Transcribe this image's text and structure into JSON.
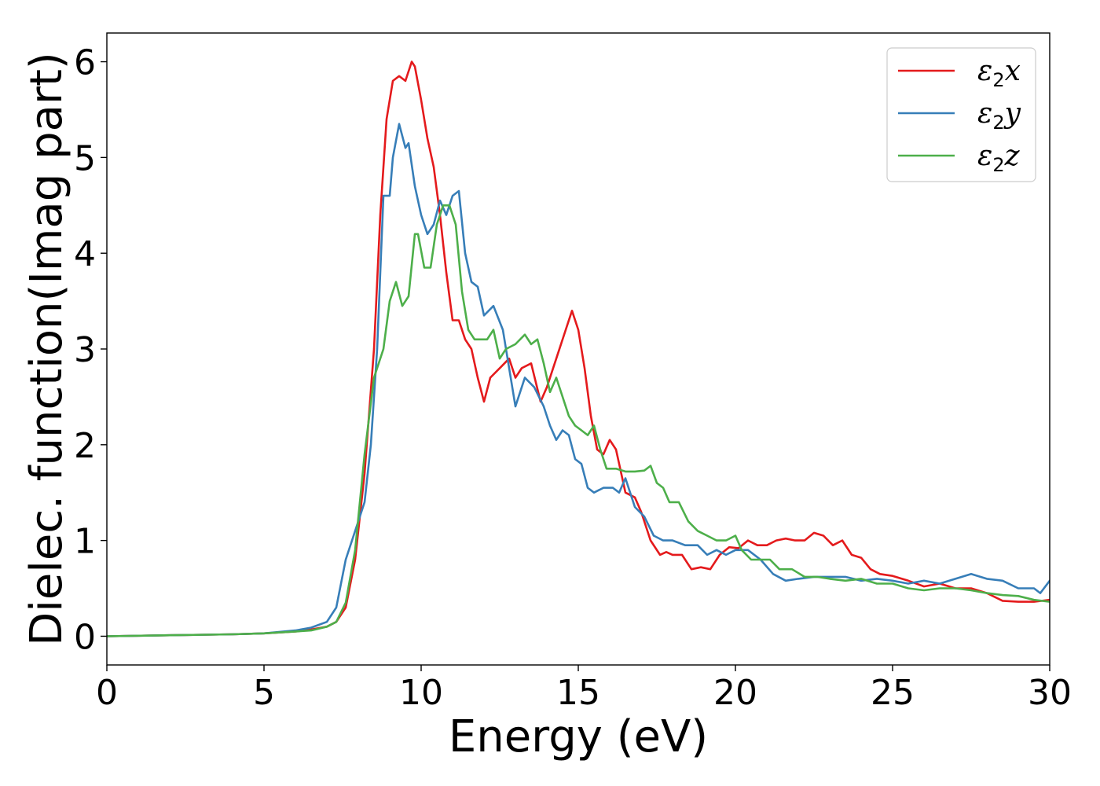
{
  "chart_data": {
    "type": "line",
    "title": "",
    "xlabel": "Energy (eV)",
    "ylabel": "Dielec. function(Imag part)",
    "xlim": [
      0,
      30
    ],
    "ylim": [
      -0.3,
      6.3
    ],
    "xticks": [
      0,
      5,
      10,
      15,
      20,
      25,
      30
    ],
    "yticks": [
      0,
      1,
      2,
      3,
      4,
      5,
      6
    ],
    "grid": false,
    "legend_position": "top-right",
    "series": [
      {
        "name": "ε2x",
        "legend_base": "ε",
        "legend_sub": "2",
        "legend_tail": "x",
        "color": "#e41a1c",
        "x": [
          0,
          2,
          4,
          5,
          6,
          6.5,
          7,
          7.3,
          7.6,
          7.9,
          8.2,
          8.5,
          8.7,
          8.9,
          9.1,
          9.3,
          9.5,
          9.7,
          9.8,
          10.0,
          10.2,
          10.4,
          10.6,
          10.8,
          11.0,
          11.2,
          11.4,
          11.6,
          11.8,
          12.0,
          12.2,
          12.5,
          12.8,
          13.0,
          13.2,
          13.5,
          13.8,
          14.0,
          14.3,
          14.6,
          14.8,
          15.0,
          15.2,
          15.4,
          15.6,
          15.8,
          16.0,
          16.2,
          16.5,
          16.8,
          17.0,
          17.3,
          17.6,
          17.8,
          18.0,
          18.3,
          18.6,
          18.9,
          19.2,
          19.5,
          19.8,
          20.1,
          20.4,
          20.7,
          21.0,
          21.3,
          21.6,
          21.9,
          22.2,
          22.5,
          22.8,
          23.1,
          23.4,
          23.7,
          24.0,
          24.3,
          24.6,
          25.0,
          25.5,
          26.0,
          26.5,
          27.0,
          27.5,
          28.0,
          28.5,
          29.0,
          29.5,
          30.0
        ],
        "y": [
          0,
          0.01,
          0.02,
          0.03,
          0.05,
          0.07,
          0.1,
          0.15,
          0.3,
          0.8,
          1.7,
          3.0,
          4.4,
          5.4,
          5.8,
          5.85,
          5.8,
          6.0,
          5.95,
          5.6,
          5.2,
          4.9,
          4.4,
          3.8,
          3.3,
          3.3,
          3.1,
          3.0,
          2.7,
          2.45,
          2.7,
          2.8,
          2.9,
          2.7,
          2.8,
          2.85,
          2.45,
          2.6,
          2.9,
          3.2,
          3.4,
          3.2,
          2.8,
          2.3,
          1.95,
          1.9,
          2.05,
          1.95,
          1.5,
          1.45,
          1.3,
          1.0,
          0.85,
          0.88,
          0.85,
          0.85,
          0.7,
          0.72,
          0.7,
          0.85,
          0.93,
          0.92,
          1.0,
          0.95,
          0.95,
          1.0,
          1.02,
          1.0,
          1.0,
          1.08,
          1.05,
          0.95,
          1.0,
          0.85,
          0.82,
          0.7,
          0.65,
          0.63,
          0.58,
          0.52,
          0.55,
          0.5,
          0.5,
          0.45,
          0.37,
          0.36,
          0.36,
          0.38
        ]
      },
      {
        "name": "ε2y",
        "legend_base": "ε",
        "legend_sub": "2",
        "legend_tail": "y",
        "color": "#377eb8",
        "x": [
          0,
          2,
          4,
          5,
          6,
          6.5,
          7,
          7.3,
          7.6,
          7.9,
          8.2,
          8.4,
          8.6,
          8.8,
          9.0,
          9.1,
          9.3,
          9.5,
          9.6,
          9.8,
          10.0,
          10.2,
          10.4,
          10.6,
          10.8,
          11.0,
          11.2,
          11.4,
          11.6,
          11.8,
          12.0,
          12.3,
          12.6,
          12.8,
          13.0,
          13.3,
          13.6,
          13.9,
          14.1,
          14.3,
          14.5,
          14.7,
          14.9,
          15.1,
          15.3,
          15.5,
          15.8,
          16.1,
          16.3,
          16.5,
          16.8,
          17.1,
          17.4,
          17.7,
          18.0,
          18.4,
          18.8,
          19.1,
          19.4,
          19.7,
          20.0,
          20.4,
          20.8,
          21.2,
          21.6,
          22.0,
          22.5,
          23.0,
          23.5,
          24.0,
          24.5,
          25.0,
          25.5,
          26.0,
          26.5,
          27.0,
          27.5,
          28.0,
          28.5,
          29.0,
          29.5,
          29.7,
          30.0
        ],
        "y": [
          0,
          0.01,
          0.02,
          0.03,
          0.06,
          0.09,
          0.15,
          0.3,
          0.8,
          1.1,
          1.4,
          2.0,
          3.0,
          4.6,
          4.6,
          5.0,
          5.35,
          5.1,
          5.15,
          4.7,
          4.4,
          4.2,
          4.3,
          4.55,
          4.4,
          4.6,
          4.65,
          4.0,
          3.7,
          3.65,
          3.35,
          3.45,
          3.2,
          2.8,
          2.4,
          2.7,
          2.6,
          2.4,
          2.2,
          2.05,
          2.15,
          2.1,
          1.85,
          1.8,
          1.55,
          1.5,
          1.55,
          1.55,
          1.5,
          1.65,
          1.35,
          1.25,
          1.05,
          1.0,
          1.0,
          0.95,
          0.95,
          0.85,
          0.9,
          0.85,
          0.9,
          0.9,
          0.8,
          0.65,
          0.58,
          0.6,
          0.62,
          0.62,
          0.62,
          0.58,
          0.6,
          0.58,
          0.55,
          0.58,
          0.55,
          0.6,
          0.65,
          0.6,
          0.58,
          0.5,
          0.5,
          0.45,
          0.58
        ]
      },
      {
        "name": "ε2z",
        "legend_base": "ε",
        "legend_sub": "2",
        "legend_tail": "z",
        "color": "#4daf4a",
        "x": [
          0,
          2,
          4,
          5,
          6,
          6.5,
          7,
          7.3,
          7.6,
          7.9,
          8.2,
          8.5,
          8.8,
          9.0,
          9.2,
          9.4,
          9.6,
          9.8,
          9.9,
          10.1,
          10.3,
          10.5,
          10.7,
          10.9,
          11.1,
          11.3,
          11.5,
          11.7,
          11.9,
          12.1,
          12.3,
          12.5,
          12.7,
          13.0,
          13.3,
          13.5,
          13.7,
          13.9,
          14.1,
          14.3,
          14.5,
          14.7,
          14.9,
          15.1,
          15.3,
          15.5,
          15.7,
          15.9,
          16.2,
          16.5,
          16.8,
          17.1,
          17.3,
          17.5,
          17.7,
          17.9,
          18.2,
          18.5,
          18.8,
          19.1,
          19.4,
          19.7,
          20.0,
          20.2,
          20.5,
          20.8,
          21.1,
          21.4,
          21.8,
          22.2,
          22.6,
          23.0,
          23.5,
          24.0,
          24.5,
          25.0,
          25.5,
          26.0,
          26.5,
          27.0,
          27.5,
          28.0,
          28.5,
          29.0,
          29.5,
          30.0
        ],
        "y": [
          0,
          0.01,
          0.02,
          0.03,
          0.05,
          0.06,
          0.1,
          0.15,
          0.35,
          0.9,
          1.9,
          2.7,
          3.0,
          3.5,
          3.7,
          3.45,
          3.55,
          4.2,
          4.2,
          3.85,
          3.85,
          4.3,
          4.5,
          4.5,
          4.3,
          3.6,
          3.2,
          3.1,
          3.1,
          3.1,
          3.2,
          2.9,
          3.0,
          3.05,
          3.15,
          3.05,
          3.1,
          2.85,
          2.55,
          2.7,
          2.5,
          2.3,
          2.2,
          2.15,
          2.1,
          2.2,
          1.95,
          1.75,
          1.75,
          1.72,
          1.72,
          1.73,
          1.78,
          1.6,
          1.55,
          1.4,
          1.4,
          1.2,
          1.1,
          1.05,
          1.0,
          1.0,
          1.05,
          0.9,
          0.8,
          0.8,
          0.8,
          0.7,
          0.7,
          0.62,
          0.62,
          0.6,
          0.58,
          0.6,
          0.55,
          0.55,
          0.5,
          0.48,
          0.5,
          0.5,
          0.48,
          0.45,
          0.43,
          0.42,
          0.38,
          0.36
        ]
      }
    ]
  }
}
